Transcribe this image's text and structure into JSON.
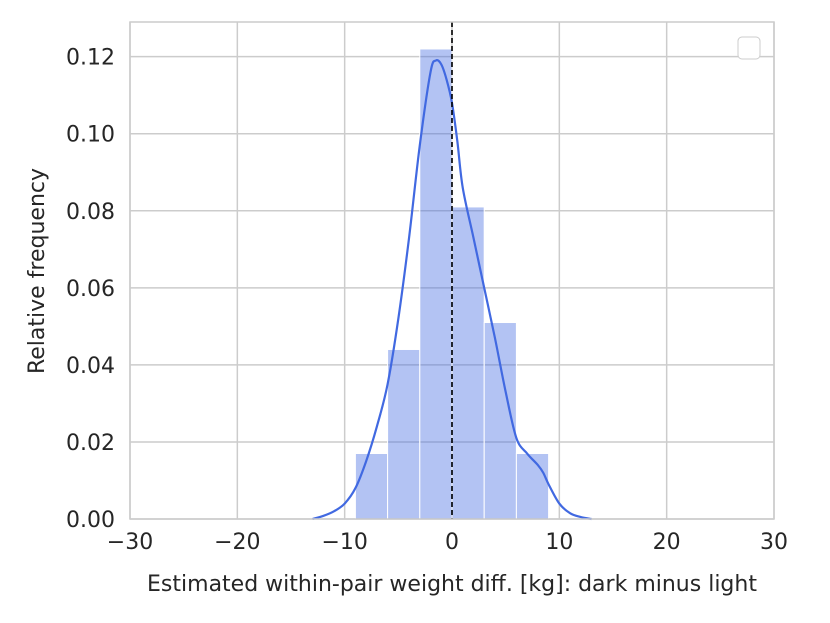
{
  "chart_data": {
    "type": "bar",
    "xlabel": "Estimated within-pair weight diff. [kg]: dark minus light",
    "ylabel": "Relative frequency",
    "xlim": [
      -30,
      30
    ],
    "ylim": [
      0,
      0.129
    ],
    "xticks": [
      -30,
      -20,
      -10,
      0,
      10,
      20,
      30
    ],
    "xtick_labels": [
      "−30",
      "−20",
      "−10",
      "0",
      "10",
      "20",
      "30"
    ],
    "yticks": [
      0.0,
      0.02,
      0.04,
      0.06,
      0.08,
      0.1,
      0.12
    ],
    "ytick_labels": [
      "0.00",
      "0.02",
      "0.04",
      "0.06",
      "0.08",
      "0.10",
      "0.12"
    ],
    "grid": true,
    "legend": "top-right (empty)",
    "histogram": {
      "bin_edges": [
        -9,
        -6,
        -3,
        0,
        3,
        6,
        9
      ],
      "values": [
        0.017,
        0.044,
        0.122,
        0.081,
        0.051,
        0.017
      ],
      "color": "#4169e1",
      "opacity": 0.4
    },
    "kde": {
      "x": [
        -13,
        -12,
        -11,
        -10,
        -9,
        -8,
        -7,
        -6,
        -5,
        -4,
        -3,
        -2,
        -1.5,
        -1,
        -0.5,
        0,
        0.5,
        1,
        2,
        3,
        4,
        5,
        6,
        7,
        8,
        8.5,
        9,
        10,
        11,
        12,
        13
      ],
      "y": [
        0.0,
        0.0008,
        0.002,
        0.004,
        0.008,
        0.015,
        0.024,
        0.035,
        0.052,
        0.073,
        0.097,
        0.116,
        0.119,
        0.118,
        0.114,
        0.108,
        0.098,
        0.086,
        0.073,
        0.06,
        0.047,
        0.033,
        0.021,
        0.017,
        0.014,
        0.012,
        0.009,
        0.004,
        0.0015,
        0.0005,
        0.0
      ],
      "color": "#4169e1"
    },
    "vline": {
      "x": 0,
      "style": "dashed",
      "color": "#000000"
    }
  }
}
